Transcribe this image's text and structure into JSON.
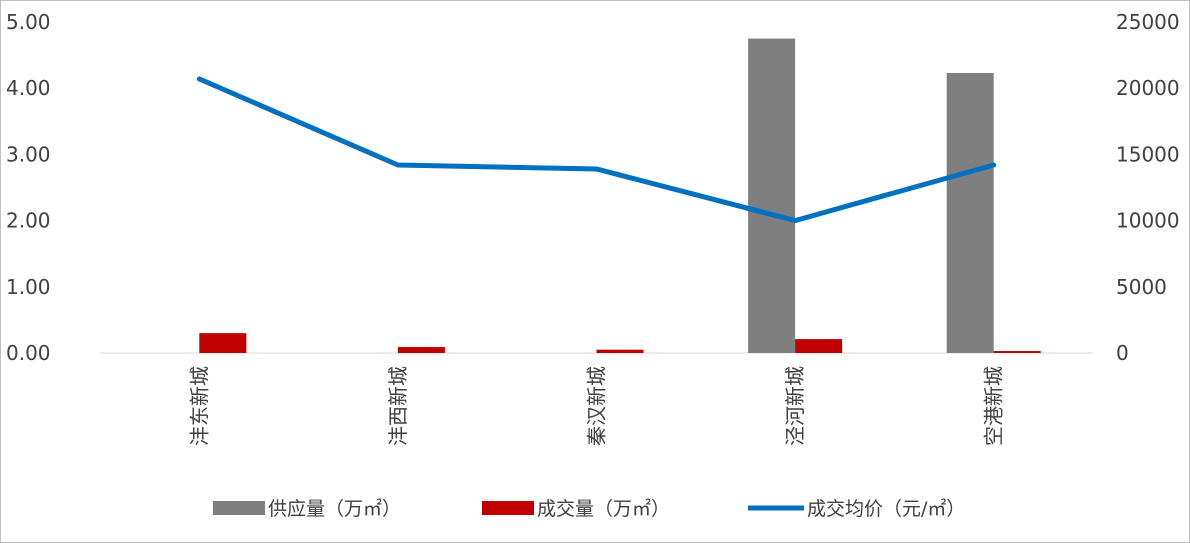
{
  "chart_data": {
    "type": "bar",
    "categories": [
      "沣东新城",
      "沣西新城",
      "秦汉新城",
      "泾河新城",
      "空港新城"
    ],
    "series": [
      {
        "name": "供应量（万㎡）",
        "type": "bar",
        "axis": "left",
        "color": "#7f7f7f",
        "values": [
          0,
          0,
          0,
          4.75,
          4.23
        ]
      },
      {
        "name": "成交量（万㎡）",
        "type": "bar",
        "axis": "left",
        "color": "#c00000",
        "values": [
          0.3,
          0.09,
          0.05,
          0.21,
          0.03
        ]
      },
      {
        "name": "成交均价（元/㎡）",
        "type": "line",
        "axis": "right",
        "color": "#0070c0",
        "values": [
          20700,
          14200,
          13900,
          10000,
          14200
        ]
      }
    ],
    "y_left": {
      "ylim": [
        0,
        5
      ],
      "ticks": [
        "0.00",
        "1.00",
        "2.00",
        "3.00",
        "4.00",
        "5.00"
      ]
    },
    "y_right": {
      "ylim": [
        0,
        25000
      ],
      "ticks": [
        "0",
        "5000",
        "10000",
        "15000",
        "20000",
        "25000"
      ]
    },
    "legend_position": "bottom",
    "grid": false
  }
}
